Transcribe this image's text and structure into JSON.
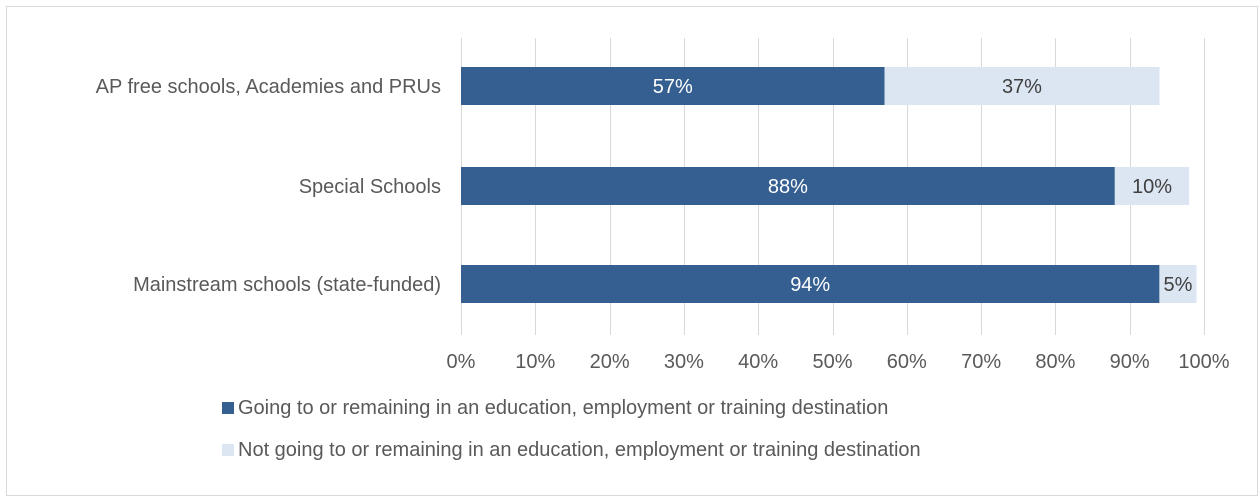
{
  "colors": {
    "series_dark": "#365f91",
    "series_light": "#dce6f2",
    "grid": "#d9d9d9",
    "text": "#595959",
    "label_on_dark": "#ffffff",
    "label_on_light": "#404040"
  },
  "chart_data": {
    "type": "bar",
    "orientation": "horizontal",
    "stacked": true,
    "categories": [
      "AP free schools, Academies and PRUs",
      "Special Schools",
      "Mainstream schools (state-funded)"
    ],
    "series": [
      {
        "name": "Going to or remaining in an education, employment or training destination",
        "values": [
          57,
          88,
          94
        ],
        "labels": [
          "57%",
          "88%",
          "94%"
        ]
      },
      {
        "name": "Not going to or remaining in an education, employment or training destination",
        "values": [
          37,
          10,
          5
        ],
        "labels": [
          "37%",
          "10%",
          "5%"
        ]
      }
    ],
    "xlim": [
      0,
      100
    ],
    "x_ticks": [
      "0%",
      "10%",
      "20%",
      "30%",
      "40%",
      "50%",
      "60%",
      "70%",
      "80%",
      "90%",
      "100%"
    ],
    "grid": "vertical",
    "legend_position": "bottom"
  }
}
